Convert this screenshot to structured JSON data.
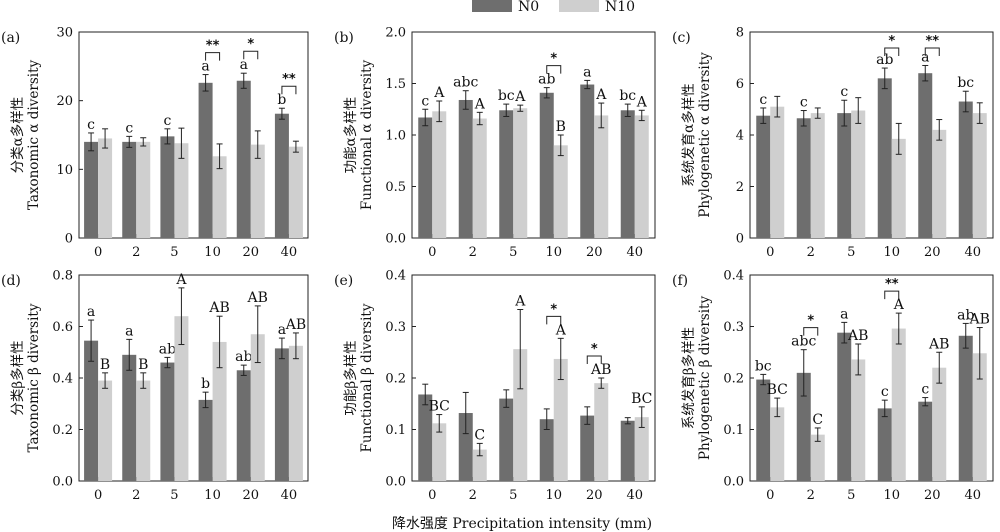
{
  "legend": [
    {
      "name": "N0",
      "color": "#6e6e6e"
    },
    {
      "name": "N10",
      "color": "#cfcfcf"
    }
  ],
  "xlabel": "降水强度 Precipitation intensity (mm)",
  "chart_data": [
    {
      "panel": "(a)",
      "type": "bar",
      "ylabel_cn": "分类α多样性",
      "ylabel_en": "Taxonomic α diversity",
      "ylim": [
        0,
        30
      ],
      "yticks": [
        0,
        10,
        20,
        30
      ],
      "categories": [
        "0",
        "2",
        "5",
        "10",
        "20",
        "40"
      ],
      "series": [
        {
          "name": "N0",
          "values": [
            14.0,
            14.0,
            14.8,
            22.6,
            22.9,
            18.1
          ],
          "errors": [
            1.3,
            0.8,
            1.1,
            1.2,
            1.1,
            0.8
          ],
          "letters": [
            "c",
            "c",
            "c",
            "a",
            "a",
            "b"
          ]
        },
        {
          "name": "N10",
          "values": [
            14.5,
            14.0,
            13.8,
            11.9,
            13.6,
            13.3
          ],
          "errors": [
            1.4,
            0.6,
            2.2,
            1.8,
            2.0,
            0.8
          ],
          "letters": [
            "",
            "",
            "",
            "",
            "",
            ""
          ]
        }
      ],
      "sig_pairs": [
        {
          "cat": 3,
          "label": "**"
        },
        {
          "cat": 4,
          "label": "*"
        },
        {
          "cat": 5,
          "label": "**"
        }
      ]
    },
    {
      "panel": "(b)",
      "type": "bar",
      "ylabel_cn": "功能α多样性",
      "ylabel_en": "Functional α diversity",
      "ylim": [
        0,
        2.0
      ],
      "yticks": [
        "0.0",
        "0.5",
        "1.0",
        "1.5",
        "2.0"
      ],
      "categories": [
        "0",
        "2",
        "5",
        "10",
        "20",
        "40"
      ],
      "series": [
        {
          "name": "N0",
          "values": [
            1.17,
            1.34,
            1.24,
            1.41,
            1.49,
            1.24
          ],
          "errors": [
            0.08,
            0.09,
            0.06,
            0.05,
            0.04,
            0.06
          ],
          "letters": [
            "c",
            "abc",
            "bc",
            "ab",
            "a",
            "bc"
          ]
        },
        {
          "name": "N10",
          "values": [
            1.23,
            1.16,
            1.26,
            0.9,
            1.19,
            1.19
          ],
          "errors": [
            0.1,
            0.06,
            0.03,
            0.1,
            0.12,
            0.05
          ],
          "letters": [
            "A",
            "A",
            "A",
            "B",
            "A",
            "A"
          ]
        }
      ],
      "sig_pairs": [
        {
          "cat": 3,
          "label": "*"
        }
      ]
    },
    {
      "panel": "(c)",
      "type": "bar",
      "ylabel_cn": "系统发育α多样性",
      "ylabel_en": "Phylogenetic α diversity",
      "ylim": [
        0,
        8
      ],
      "yticks": [
        0,
        2,
        4,
        6,
        8
      ],
      "categories": [
        "0",
        "2",
        "5",
        "10",
        "20",
        "40"
      ],
      "series": [
        {
          "name": "N0",
          "values": [
            4.75,
            4.65,
            4.85,
            6.2,
            6.4,
            5.3
          ],
          "errors": [
            0.3,
            0.3,
            0.5,
            0.4,
            0.3,
            0.4
          ],
          "letters": [
            "c",
            "c",
            "c",
            "ab",
            "a",
            "bc"
          ]
        },
        {
          "name": "N10",
          "values": [
            5.1,
            4.85,
            4.95,
            3.85,
            4.2,
            4.85
          ],
          "errors": [
            0.4,
            0.2,
            0.5,
            0.6,
            0.4,
            0.4
          ],
          "letters": [
            "",
            "",
            "",
            "",
            "",
            ""
          ]
        }
      ],
      "sig_pairs": [
        {
          "cat": 3,
          "label": "*"
        },
        {
          "cat": 4,
          "label": "**"
        }
      ]
    },
    {
      "panel": "(d)",
      "type": "bar",
      "ylabel_cn": "分类β多样性",
      "ylabel_en": "Taxonomic β diversity",
      "ylim": [
        0,
        0.8
      ],
      "yticks": [
        "0.0",
        "0.2",
        "0.4",
        "0.6",
        "0.8"
      ],
      "categories": [
        "0",
        "2",
        "5",
        "10",
        "20",
        "40"
      ],
      "series": [
        {
          "name": "N0",
          "values": [
            0.545,
            0.49,
            0.46,
            0.315,
            0.43,
            0.515
          ],
          "errors": [
            0.08,
            0.06,
            0.02,
            0.03,
            0.02,
            0.04
          ],
          "letters": [
            "a",
            "a",
            "ab",
            "b",
            "ab",
            "a"
          ]
        },
        {
          "name": "N10",
          "values": [
            0.39,
            0.39,
            0.64,
            0.54,
            0.57,
            0.525
          ],
          "errors": [
            0.03,
            0.03,
            0.11,
            0.1,
            0.11,
            0.05
          ],
          "letters": [
            "B",
            "B",
            "A",
            "AB",
            "AB",
            "AB"
          ]
        }
      ],
      "sig_pairs": []
    },
    {
      "panel": "(e)",
      "type": "bar",
      "ylabel_cn": "功能β多样性",
      "ylabel_en": "Functional β diversity",
      "ylim": [
        0,
        0.4
      ],
      "yticks": [
        "0.0",
        "0.1",
        "0.2",
        "0.3",
        "0.4"
      ],
      "categories": [
        "0",
        "2",
        "5",
        "10",
        "20",
        "40"
      ],
      "series": [
        {
          "name": "N0",
          "values": [
            0.168,
            0.132,
            0.16,
            0.12,
            0.127,
            0.117
          ],
          "errors": [
            0.02,
            0.04,
            0.017,
            0.02,
            0.017,
            0.006
          ],
          "letters": [
            "",
            "",
            "",
            "",
            "",
            ""
          ]
        },
        {
          "name": "N10",
          "values": [
            0.112,
            0.061,
            0.256,
            0.237,
            0.19,
            0.124
          ],
          "errors": [
            0.017,
            0.012,
            0.077,
            0.04,
            0.01,
            0.02
          ],
          "letters": [
            "BC",
            "C",
            "A",
            "A",
            "AB",
            "BC"
          ]
        }
      ],
      "sig_pairs": [
        {
          "cat": 3,
          "label": "*"
        },
        {
          "cat": 4,
          "label": "*"
        }
      ]
    },
    {
      "panel": "(f)",
      "type": "bar",
      "ylabel_cn": "系统发育β多样性",
      "ylabel_en": "Phylogenetic β diversity",
      "ylim": [
        0,
        0.4
      ],
      "yticks": [
        "0.0",
        "0.1",
        "0.2",
        "0.3",
        "0.4"
      ],
      "categories": [
        "0",
        "2",
        "5",
        "10",
        "20",
        "40"
      ],
      "series": [
        {
          "name": "N0",
          "values": [
            0.197,
            0.21,
            0.288,
            0.141,
            0.154,
            0.282
          ],
          "errors": [
            0.01,
            0.045,
            0.02,
            0.016,
            0.008,
            0.024
          ],
          "letters": [
            "bc",
            "abc",
            "a",
            "c",
            "c",
            "ab"
          ]
        },
        {
          "name": "N10",
          "values": [
            0.143,
            0.09,
            0.236,
            0.296,
            0.22,
            0.248
          ],
          "errors": [
            0.018,
            0.013,
            0.03,
            0.03,
            0.03,
            0.05
          ],
          "letters": [
            "BC",
            "C",
            "AB",
            "A",
            "AB",
            "AB"
          ]
        }
      ],
      "sig_pairs": [
        {
          "cat": 1,
          "label": "*"
        },
        {
          "cat": 3,
          "label": "**"
        }
      ]
    }
  ]
}
